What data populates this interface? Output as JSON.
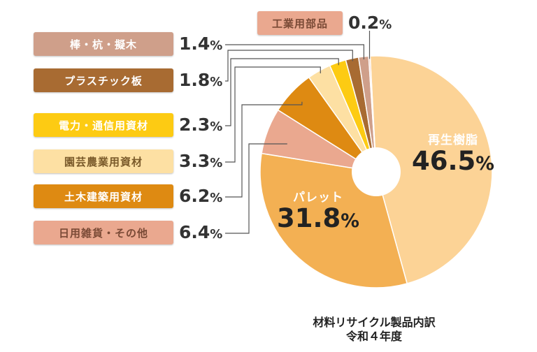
{
  "chart_data": {
    "type": "pie",
    "style": "donut",
    "categories": [
      "再生樹脂",
      "パレット",
      "日用雑貨・その他",
      "土木建築用資材",
      "園芸農業用資材",
      "電力・通信用資材",
      "プラスチック板",
      "棒・杭・擬木",
      "工業用部品"
    ],
    "values": [
      46.5,
      31.8,
      6.4,
      6.2,
      3.3,
      2.3,
      1.8,
      1.4,
      0.2
    ],
    "value_labels": [
      "46.5%",
      "31.8%",
      "6.4%",
      "6.2%",
      "3.3%",
      "2.3%",
      "1.8%",
      "1.4%",
      "0.2%"
    ],
    "colors": [
      "#fcd396",
      "#f3b053",
      "#eaa88f",
      "#de8a12",
      "#fde0a3",
      "#fdcb13",
      "#a86b32",
      "#cf9f8a",
      "#eaa88f"
    ],
    "label_text_colors": [
      "#ffffff",
      "#ffffff",
      "#7a4a36",
      "#ffffff",
      "#7a5a2a",
      "#ffffff",
      "#ffffff",
      "#ffffff",
      "#7a4a36"
    ],
    "legend_placement": "left",
    "caption": [
      "材料リサイクル製品内訳",
      "令和４年度"
    ]
  }
}
